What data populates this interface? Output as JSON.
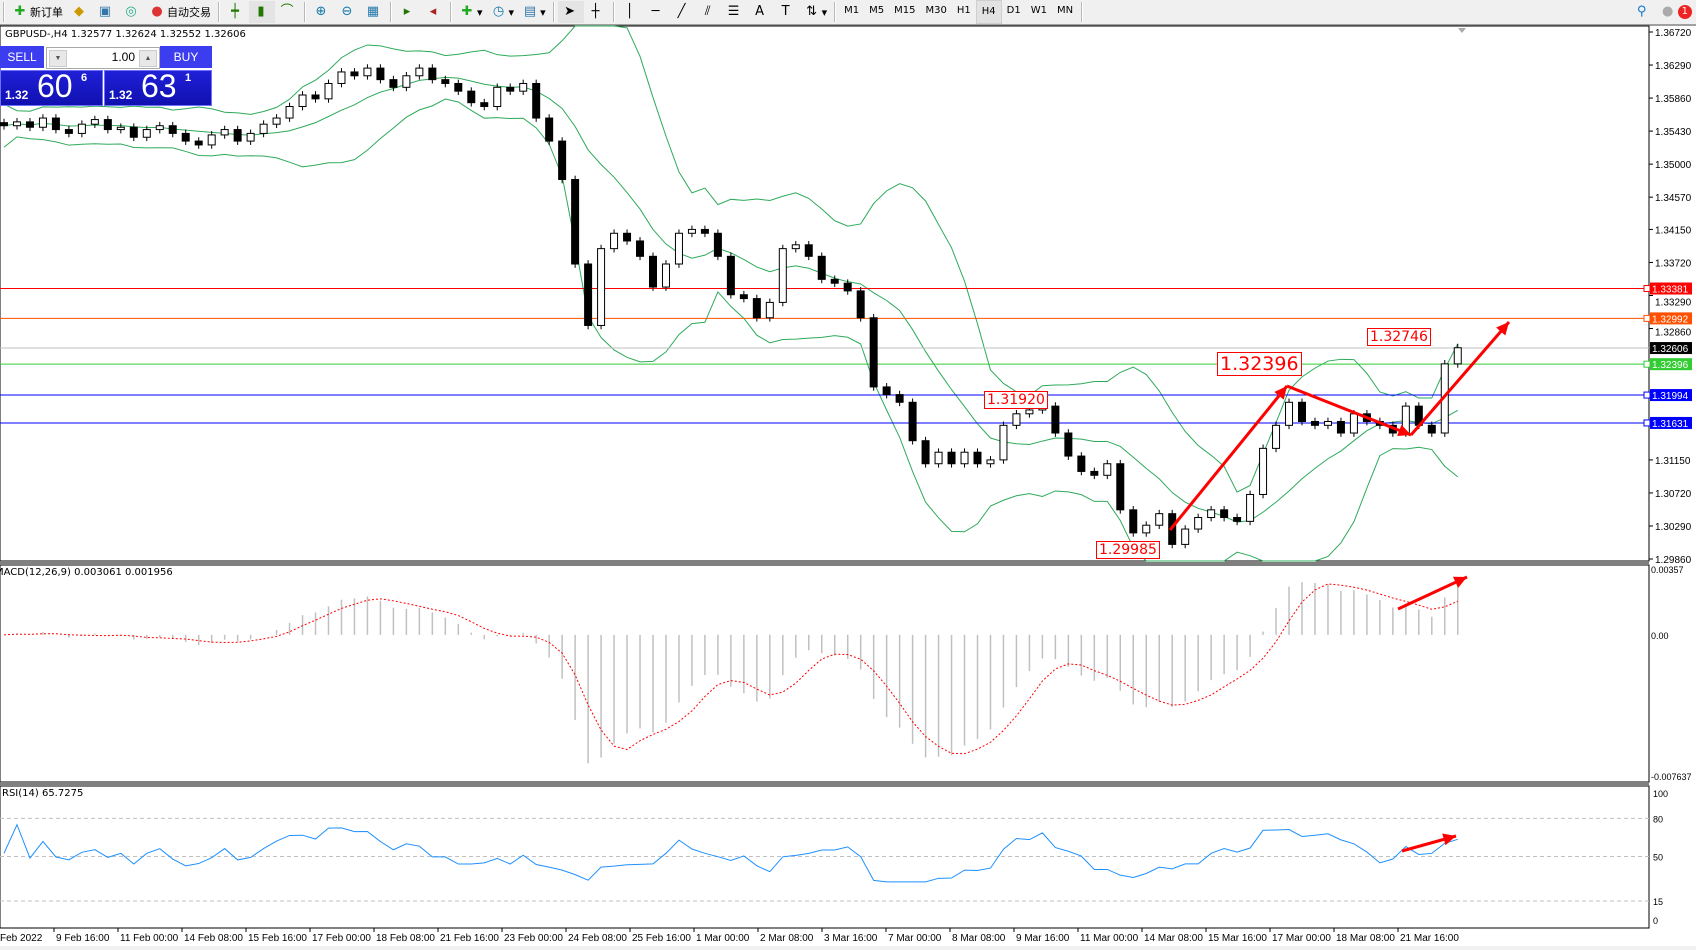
{
  "toolbar": {
    "new_order": "新订单",
    "auto_trading": "自动交易",
    "icons": [
      "new-order-icon",
      "navigator-icon",
      "market-watch-icon",
      "signals-icon",
      "auto-trading-icon",
      "bar-chart-icon",
      "candlestick-icon",
      "line-chart-icon",
      "zoom-in-icon",
      "zoom-out-icon",
      "tile-windows-icon",
      "auto-scroll-icon",
      "chart-shift-icon",
      "indicators-icon",
      "periods-icon",
      "templates-icon",
      "cursor-icon",
      "crosshair-icon",
      "vertical-line-icon",
      "horizontal-line-icon",
      "trendline-icon",
      "equidistant-channel-icon",
      "fibonacci-icon",
      "text-icon",
      "text-label-icon",
      "arrows-icon",
      "search-icon",
      "notifications-icon"
    ],
    "timeframes": [
      "M1",
      "M5",
      "M15",
      "M30",
      "H1",
      "H4",
      "D1",
      "W1",
      "MN"
    ],
    "active_timeframe": "H4",
    "notification_count": "1"
  },
  "chart": {
    "title": "GBPUSD-,H4  1.32577 1.32624 1.32552 1.32606",
    "one_click": {
      "sell_label": "SELL",
      "buy_label": "BUY",
      "lot": "1.00",
      "sell_prefix": "1.32",
      "sell_big": "60",
      "sell_pip": "6",
      "buy_prefix": "1.32",
      "buy_big": "63",
      "buy_pip": "1"
    }
  },
  "chart_data": {
    "type": "candlestick",
    "symbol": "GBPUSD-",
    "timeframe": "H4",
    "ylim": [
      1.2986,
      1.3672
    ],
    "y_ticks": [
      "1.36720",
      "1.36290",
      "1.35860",
      "1.35430",
      "1.35000",
      "1.34570",
      "1.34150",
      "1.33720",
      "1.33290",
      "1.32860",
      "1.31150",
      "1.30720",
      "1.30290",
      "1.29860"
    ],
    "x_ticks": [
      "Feb 2022",
      "9 Feb 16:00",
      "11 Feb 00:00",
      "14 Feb 08:00",
      "15 Feb 16:00",
      "17 Feb 00:00",
      "18 Feb 08:00",
      "21 Feb 16:00",
      "23 Feb 00:00",
      "24 Feb 08:00",
      "25 Feb 16:00",
      "1 Mar 00:00",
      "2 Mar 08:00",
      "3 Mar 16:00",
      "7 Mar 00:00",
      "8 Mar 08:00",
      "9 Mar 16:00",
      "11 Mar 00:00",
      "14 Mar 08:00",
      "15 Mar 16:00",
      "17 Mar 00:00",
      "18 Mar 08:00",
      "21 Mar 16:00"
    ],
    "closes": [
      1.355,
      1.3555,
      1.3548,
      1.356,
      1.3545,
      1.354,
      1.3552,
      1.3558,
      1.3545,
      1.3548,
      1.3535,
      1.3545,
      1.355,
      1.354,
      1.353,
      1.3525,
      1.3538,
      1.3545,
      1.353,
      1.354,
      1.3552,
      1.356,
      1.3575,
      1.359,
      1.3585,
      1.3605,
      1.362,
      1.3615,
      1.3625,
      1.361,
      1.36,
      1.3615,
      1.3625,
      1.361,
      1.3605,
      1.3595,
      1.358,
      1.3575,
      1.36,
      1.3595,
      1.3605,
      1.356,
      1.353,
      1.348,
      1.337,
      1.329,
      1.339,
      1.341,
      1.34,
      1.338,
      1.334,
      1.337,
      1.341,
      1.3415,
      1.341,
      1.338,
      1.333,
      1.3325,
      1.33,
      1.332,
      1.339,
      1.3395,
      1.338,
      1.335,
      1.3345,
      1.3335,
      1.33,
      1.321,
      1.32,
      1.319,
      1.314,
      1.311,
      1.3125,
      1.311,
      1.3125,
      1.311,
      1.3115,
      1.316,
      1.3175,
      1.318,
      1.3185,
      1.315,
      1.312,
      1.31,
      1.3095,
      1.311,
      1.305,
      1.302,
      1.303,
      1.3045,
      1.3005,
      1.3025,
      1.304,
      1.305,
      1.304,
      1.3035,
      1.307,
      1.313,
      1.316,
      1.319,
      1.3165,
      1.316,
      1.3165,
      1.315,
      1.3175,
      1.3165,
      1.316,
      1.315,
      1.3185,
      1.316,
      1.315,
      1.324,
      1.3261
    ],
    "current_price": {
      "value": "1.32606",
      "color": "#000000"
    },
    "hlines": [
      {
        "value": "1.33381",
        "color": "#ff0000"
      },
      {
        "value": "1.32992",
        "color": "#ff5000"
      },
      {
        "value": "1.32396",
        "color": "#33cc33"
      },
      {
        "value": "1.31994",
        "color": "#0000ff"
      },
      {
        "value": "1.31631",
        "color": "#0000ff"
      }
    ],
    "annotations": [
      "1.31920",
      "1.29985",
      "1.32396",
      "1.32746"
    ],
    "band_color": "#2eaa5a",
    "arrow_color": "#ff0000",
    "macd": {
      "label": "MACD(12,26,9) 0.003061 0.001956",
      "ylim": [
        -0.007637,
        0.00357
      ],
      "y_ticks": [
        "0.00357",
        "0.00",
        "-0.007637"
      ],
      "histogram_color": "#c0c0c0",
      "signal_color": "#ff0000"
    },
    "rsi": {
      "label": "RSI(14) 65.7275",
      "visible_label": "SI(14) 65.7275",
      "ylim": [
        0,
        100
      ],
      "levels": [
        "80",
        "50",
        "15"
      ],
      "y_ticks": [
        "100",
        "80",
        "50",
        "15",
        "0"
      ],
      "line_color": "#1e90ff"
    }
  }
}
